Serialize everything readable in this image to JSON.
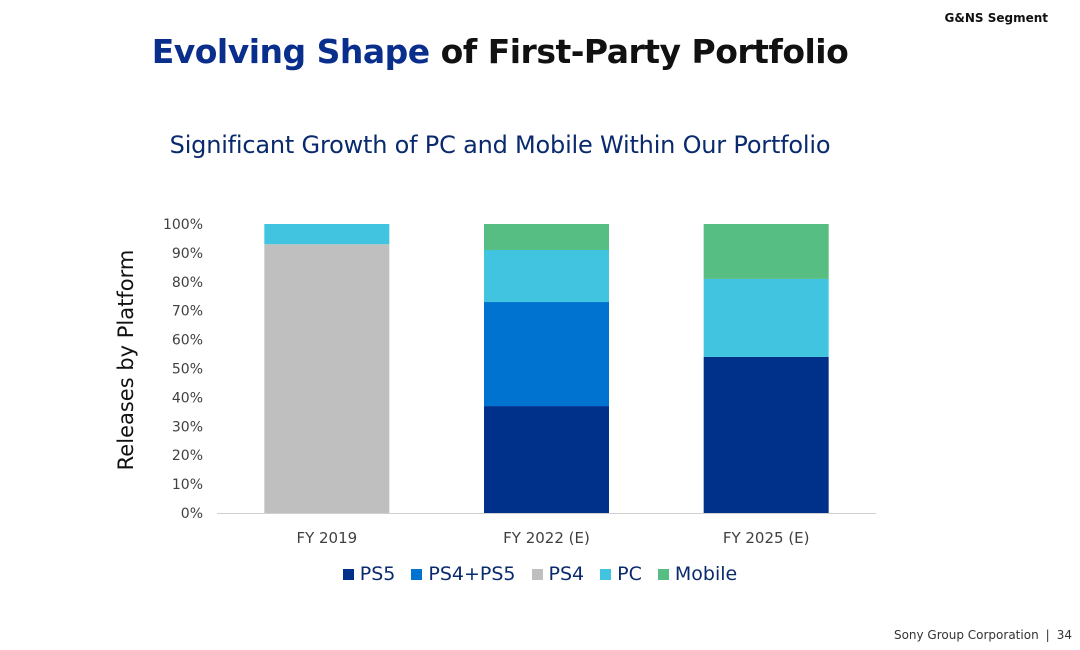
{
  "header": {
    "segment": "G&NS Segment",
    "title_accent": "Evolving Shape",
    "title_rest": " of First-Party Portfolio"
  },
  "footer": {
    "company": "Sony Group Corporation",
    "separator": "|",
    "page_number": "34"
  },
  "chart_data": {
    "type": "bar",
    "stacked": true,
    "title": "Significant Growth of PC and Mobile Within Our Portfolio",
    "xlabel": "",
    "ylabel": "Releases by Platform",
    "ylim": [
      0,
      100
    ],
    "yticks": [
      "0%",
      "10%",
      "20%",
      "30%",
      "40%",
      "50%",
      "60%",
      "70%",
      "80%",
      "90%",
      "100%"
    ],
    "categories": [
      "FY 2019",
      "FY 2022 (E)",
      "FY 2025 (E)"
    ],
    "series": [
      {
        "name": "PS5",
        "color": "#00318a",
        "values": [
          0,
          37,
          54
        ]
      },
      {
        "name": "PS4+PS5",
        "color": "#0072d0",
        "values": [
          0,
          36,
          0
        ]
      },
      {
        "name": "PS4",
        "color": "#bfbfbf",
        "values": [
          93,
          0,
          0
        ]
      },
      {
        "name": "PC",
        "color": "#40c4e0",
        "values": [
          7,
          18,
          27
        ]
      },
      {
        "name": "Mobile",
        "color": "#56bd83",
        "values": [
          0,
          9,
          19
        ]
      }
    ],
    "legend": "bottom"
  }
}
